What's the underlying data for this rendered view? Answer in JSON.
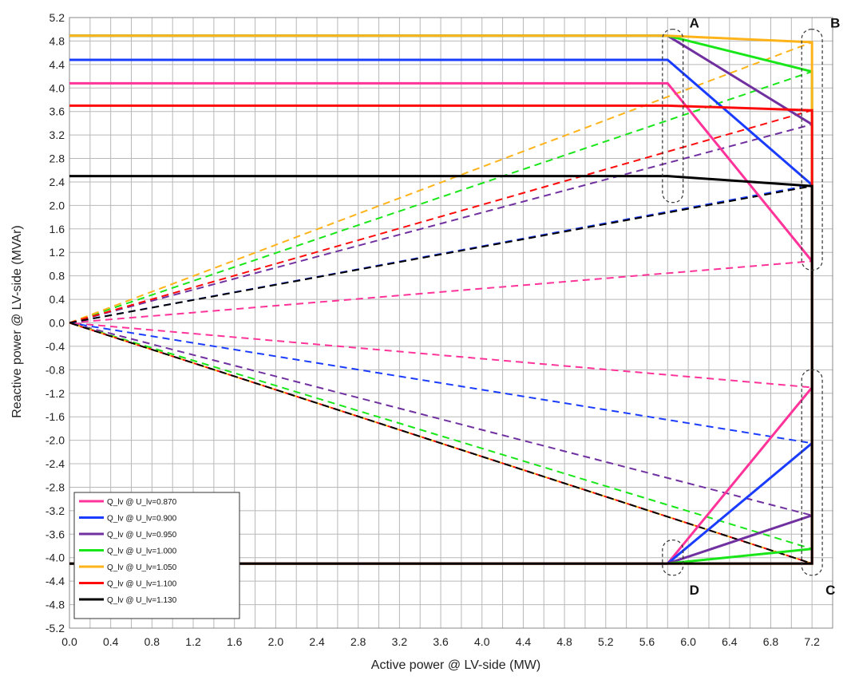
{
  "chart_data": {
    "type": "line",
    "xlabel": "Active power  @ LV-side (MW)",
    "ylabel": "Reactive power @ LV-side (MVAr)",
    "xlim": [
      0,
      7.4
    ],
    "ylim": [
      -5.2,
      5.2
    ],
    "x_ticks": [
      "0.0",
      "0.4",
      "0.8",
      "1.2",
      "1.6",
      "2.0",
      "2.4",
      "2.8",
      "3.2",
      "3.6",
      "4.0",
      "4.4",
      "4.8",
      "5.2",
      "5.6",
      "6.0",
      "6.4",
      "6.8",
      "7.2"
    ],
    "y_ticks": [
      "5.2",
      "4.8",
      "4.4",
      "4.0",
      "3.6",
      "3.2",
      "2.8",
      "2.4",
      "2.0",
      "1.6",
      "1.2",
      "0.8",
      "0.4",
      "0.0",
      "-0.4",
      "-0.8",
      "-1.2",
      "-1.6",
      "-2.0",
      "-2.4",
      "-2.8",
      "-3.2",
      "-3.6",
      "-4.0",
      "-4.4",
      "-4.8",
      "-5.2"
    ],
    "grid": true,
    "legend_position": "bottom-left",
    "series": [
      {
        "name": "Q_lv @ U_lv=0.870",
        "color": "#ff3399",
        "x": [
          0,
          5.8,
          7.2,
          7.2,
          5.8,
          0
        ],
        "y": [
          4.08,
          4.08,
          1.05,
          -1.1,
          -4.1,
          -4.1
        ],
        "dashed_x": [
          0,
          7.2,
          7.2,
          0
        ],
        "dashed_y": [
          0,
          1.05,
          -1.1,
          0
        ]
      },
      {
        "name": "Q_lv @ U_lv=0.900",
        "color": "#1a3cff",
        "x": [
          0,
          5.8,
          7.2,
          7.2,
          5.8,
          0
        ],
        "y": [
          4.48,
          4.48,
          2.35,
          -2.05,
          -4.1,
          -4.1
        ],
        "dashed_x": [
          0,
          7.2,
          7.2,
          0
        ],
        "dashed_y": [
          0,
          2.35,
          -2.05,
          0
        ]
      },
      {
        "name": "Q_lv @ U_lv=0.950",
        "color": "#7030a0",
        "x": [
          0,
          5.8,
          7.2,
          7.2,
          5.8,
          0
        ],
        "y": [
          4.89,
          4.89,
          3.38,
          -3.28,
          -4.1,
          -4.1
        ],
        "dashed_x": [
          0,
          7.2,
          7.2,
          0
        ],
        "dashed_y": [
          0,
          3.38,
          -3.28,
          0
        ]
      },
      {
        "name": "Q_lv @ U_lv=1.000",
        "color": "#19e619",
        "x": [
          0,
          5.8,
          7.2,
          7.2,
          5.8,
          0
        ],
        "y": [
          4.89,
          4.89,
          4.28,
          -3.85,
          -4.1,
          -4.1
        ],
        "dashed_x": [
          0,
          7.2,
          7.2,
          0
        ],
        "dashed_y": [
          0,
          4.28,
          -3.85,
          0
        ]
      },
      {
        "name": "Q_lv @ U_lv=1.050",
        "color": "#ffb31a",
        "x": [
          0,
          5.8,
          7.2,
          7.2,
          5.8,
          0
        ],
        "y": [
          4.89,
          4.89,
          4.78,
          -4.1,
          -4.1,
          -4.1
        ],
        "dashed_x": [
          0,
          7.2,
          7.2,
          0
        ],
        "dashed_y": [
          0,
          4.78,
          -4.1,
          0
        ]
      },
      {
        "name": "Q_lv @ U_lv=1.100",
        "color": "#ff0a0a",
        "x": [
          0,
          5.8,
          7.2,
          7.2,
          5.8,
          0
        ],
        "y": [
          3.7,
          3.7,
          3.62,
          -4.1,
          -4.1,
          -4.1
        ],
        "dashed_x": [
          0,
          7.2,
          7.2,
          0
        ],
        "dashed_y": [
          0,
          3.62,
          -4.1,
          0
        ]
      },
      {
        "name": "Q_lv @ U_lv=1.130",
        "color": "#000000",
        "x": [
          0,
          5.8,
          7.2,
          7.2,
          5.8,
          0
        ],
        "y": [
          2.5,
          2.5,
          2.33,
          -4.1,
          -4.1,
          -4.1
        ],
        "dashed_x": [
          0,
          7.2,
          7.2,
          0
        ],
        "dashed_y": [
          0,
          2.33,
          -4.1,
          0
        ]
      }
    ],
    "annotations": [
      {
        "label": "A",
        "x_range": [
          5.75,
          5.95
        ],
        "y_range": [
          2.05,
          5.0
        ]
      },
      {
        "label": "B",
        "x_range": [
          7.1,
          7.3
        ],
        "y_range": [
          0.9,
          5.0
        ]
      },
      {
        "label": "C",
        "x_range": [
          7.1,
          7.3
        ],
        "y_range": [
          -4.3,
          -0.8
        ]
      },
      {
        "label": "D",
        "x_range": [
          5.75,
          5.95
        ],
        "y_range": [
          -4.3,
          -3.7
        ]
      }
    ]
  }
}
